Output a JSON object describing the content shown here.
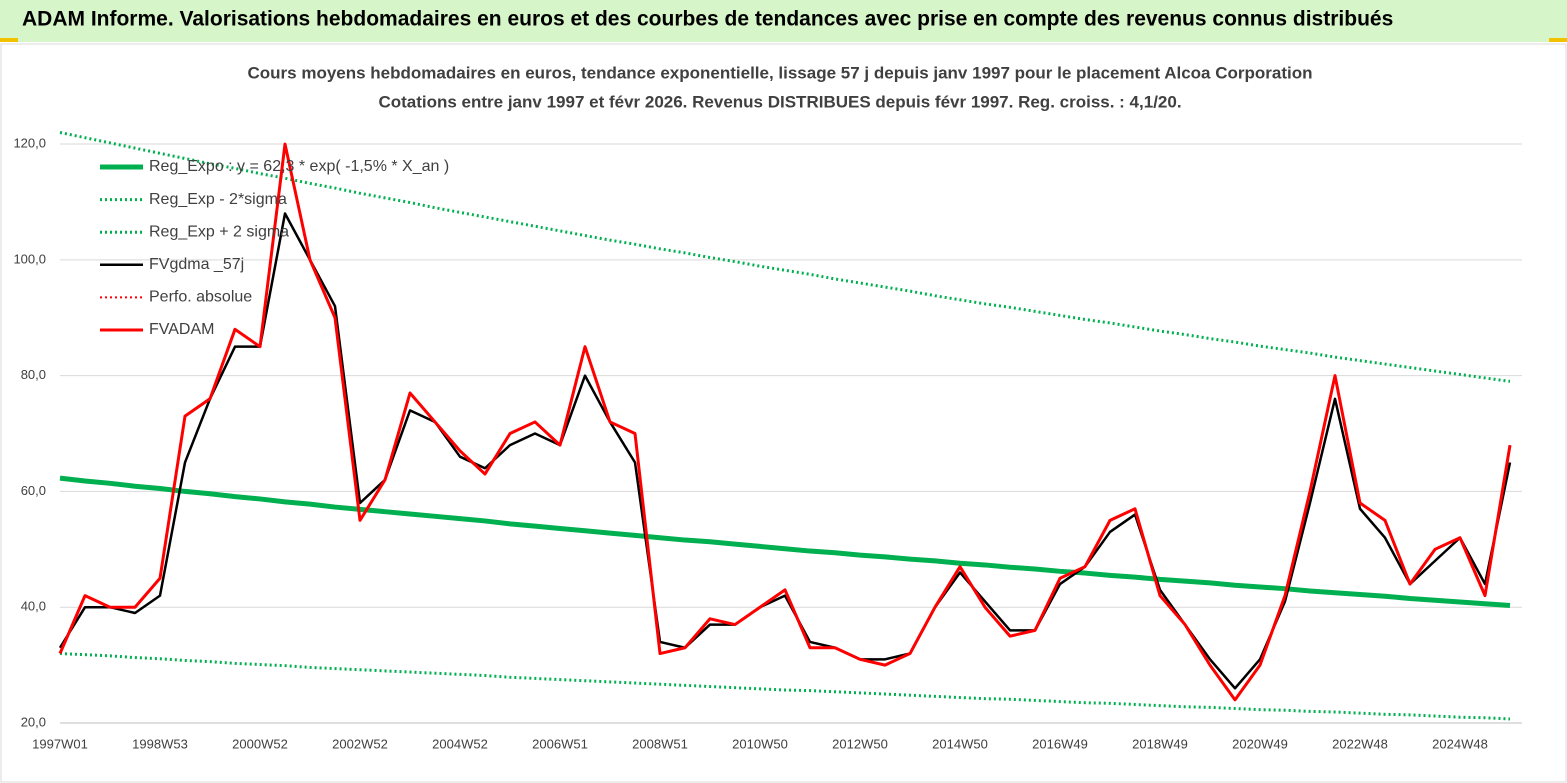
{
  "header": {
    "title": "ADAM Informe. Valorisations hebdomadaires en euros et des courbes de tendances avec prise en compte des revenus connus distribués"
  },
  "chart_data": {
    "type": "line",
    "title": "Cours moyens hebdomadaires en euros, tendance exponentielle, lissage 57 j depuis janv 1997 pour le placement Alcoa Corporation",
    "subtitle": "Cotations entre janv 1997 et févr 2026. Revenus DISTRIBUES depuis févr 1997. Reg. croiss. : 4,1/20.",
    "categories": [
      "1997W01",
      null,
      null,
      null,
      "1998W53",
      null,
      null,
      null,
      "2000W52",
      null,
      null,
      null,
      "2002W52",
      null,
      null,
      null,
      "2004W52",
      null,
      null,
      null,
      "2006W51",
      null,
      null,
      null,
      "2008W51",
      null,
      null,
      null,
      "2010W50",
      null,
      null,
      null,
      "2012W50",
      null,
      null,
      null,
      "2014W50",
      null,
      null,
      null,
      "2016W49",
      null,
      null,
      null,
      "2018W49",
      null,
      null,
      null,
      "2020W49",
      null,
      null,
      null,
      "2022W48",
      null,
      null,
      null,
      "2024W48",
      null,
      null
    ],
    "ylim": [
      20,
      124.5
    ],
    "yticks": [
      {
        "value": 20,
        "label": "20,0"
      },
      {
        "value": 40,
        "label": "40,0"
      },
      {
        "value": 60,
        "label": "60,0"
      },
      {
        "value": 80,
        "label": "80,0"
      },
      {
        "value": 100,
        "label": "100,0"
      },
      {
        "value": 120,
        "label": "120,0"
      }
    ],
    "grid": true,
    "legend": "upper-left",
    "series": [
      {
        "name": "Reg_Expo : y = 62,3 * exp( -1,5% *  X_an )",
        "color": "#00b050",
        "style": "solid",
        "width": 5,
        "values": [
          62.3,
          61.8,
          61.4,
          60.9,
          60.5,
          60.0,
          59.6,
          59.1,
          58.7,
          58.2,
          57.8,
          57.3,
          56.9,
          56.5,
          56.1,
          55.7,
          55.3,
          54.9,
          54.4,
          54.0,
          53.6,
          53.2,
          52.8,
          52.4,
          52.0,
          51.6,
          51.3,
          50.9,
          50.5,
          50.1,
          49.7,
          49.4,
          49.0,
          48.7,
          48.3,
          48.0,
          47.6,
          47.3,
          46.9,
          46.6,
          46.2,
          45.9,
          45.5,
          45.2,
          44.8,
          44.5,
          44.2,
          43.8,
          43.5,
          43.2,
          42.8,
          42.5,
          42.2,
          41.9,
          41.5,
          41.2,
          40.9,
          40.6,
          40.3
        ]
      },
      {
        "name": "Reg_Exp - 2*sigma",
        "color": "#00b050",
        "style": "dotted",
        "width": 3,
        "values": [
          32.0,
          31.8,
          31.6,
          31.3,
          31.1,
          30.8,
          30.6,
          30.3,
          30.1,
          29.9,
          29.6,
          29.4,
          29.2,
          29.0,
          28.8,
          28.6,
          28.4,
          28.2,
          27.9,
          27.7,
          27.5,
          27.3,
          27.1,
          26.9,
          26.7,
          26.5,
          26.3,
          26.1,
          25.9,
          25.7,
          25.6,
          25.4,
          25.2,
          25.0,
          24.8,
          24.6,
          24.4,
          24.2,
          24.1,
          23.9,
          23.7,
          23.5,
          23.4,
          23.2,
          23.0,
          22.8,
          22.7,
          22.5,
          22.3,
          22.2,
          22.0,
          21.9,
          21.7,
          21.5,
          21.4,
          21.2,
          21.0,
          20.9,
          20.7
        ]
      },
      {
        "name": "Reg_Exp + 2 sigma",
        "color": "#00b050",
        "style": "dotted",
        "width": 3,
        "values": [
          122.0,
          121.1,
          120.2,
          119.3,
          118.4,
          117.5,
          116.6,
          115.8,
          114.9,
          114.1,
          113.2,
          112.4,
          111.5,
          110.7,
          109.9,
          109.0,
          108.2,
          107.4,
          106.6,
          105.8,
          105.0,
          104.2,
          103.4,
          102.7,
          101.9,
          101.2,
          100.4,
          99.7,
          98.9,
          98.2,
          97.5,
          96.7,
          96.0,
          95.3,
          94.6,
          93.8,
          93.1,
          92.4,
          91.8,
          91.1,
          90.4,
          89.7,
          89.1,
          88.4,
          87.7,
          87.1,
          86.4,
          85.8,
          85.1,
          84.5,
          83.9,
          83.2,
          82.6,
          82.0,
          81.4,
          80.8,
          80.2,
          79.6,
          79.0
        ]
      },
      {
        "name": "FVgdma _57j",
        "color": "#000000",
        "style": "solid",
        "width": 2.5,
        "values": [
          33,
          40,
          40,
          39,
          42,
          65,
          76,
          85,
          85,
          108,
          100,
          92,
          58,
          62,
          74,
          72,
          66,
          64,
          68,
          70,
          68,
          80,
          72,
          65,
          34,
          33,
          37,
          37,
          40,
          42,
          34,
          33,
          31,
          31,
          32,
          40,
          46,
          41,
          36,
          36,
          44,
          47,
          53,
          56,
          43,
          37,
          31,
          26,
          31,
          41,
          58,
          76,
          57,
          52,
          44,
          48,
          52,
          44,
          65
        ]
      },
      {
        "name": "Perfo. absolue",
        "color": "#ff0000",
        "style": "dotted",
        "width": 2
      },
      {
        "name": "FVADAM",
        "color": "#ff0000",
        "style": "solid",
        "width": 3,
        "values": [
          32,
          42,
          40,
          40,
          45,
          73,
          76,
          88,
          85,
          120,
          100,
          90,
          55,
          62,
          77,
          72,
          67,
          63,
          70,
          72,
          68,
          85,
          72,
          70,
          32,
          33,
          38,
          37,
          40,
          43,
          33,
          33,
          31,
          30,
          32,
          40,
          47,
          40,
          35,
          36,
          45,
          47,
          55,
          57,
          42,
          37,
          30,
          24,
          30,
          42,
          60,
          80,
          58,
          55,
          44,
          50,
          52,
          42,
          68
        ]
      }
    ]
  }
}
